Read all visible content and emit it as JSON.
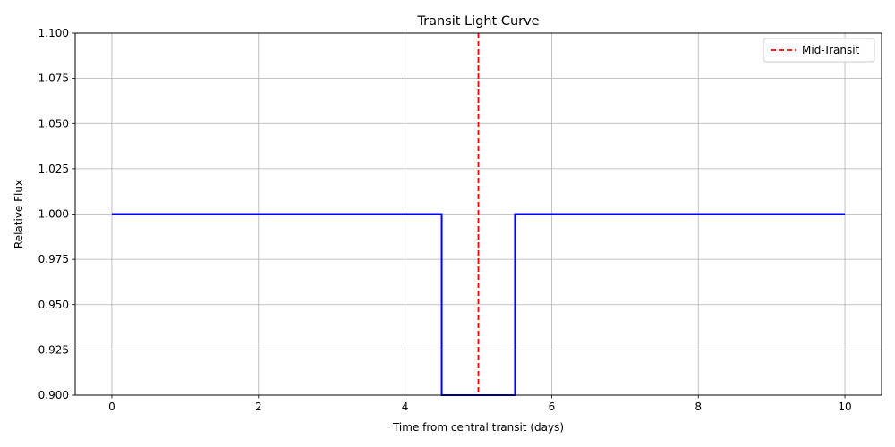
{
  "chart_data": {
    "type": "line",
    "title": "Transit Light Curve",
    "xlabel": "Time from central transit (days)",
    "ylabel": "Relative Flux",
    "xlim": [
      -0.5,
      10.5
    ],
    "ylim": [
      0.9,
      1.1
    ],
    "xticks": [
      0,
      2,
      4,
      6,
      8,
      10
    ],
    "xtick_labels": [
      "0",
      "2",
      "4",
      "6",
      "8",
      "10"
    ],
    "yticks": [
      0.9,
      0.925,
      0.95,
      0.975,
      1.0,
      1.025,
      1.05,
      1.075,
      1.1
    ],
    "ytick_labels": [
      "0.900",
      "0.925",
      "0.950",
      "0.975",
      "1.000",
      "1.025",
      "1.050",
      "1.075",
      "1.100"
    ],
    "grid": true,
    "legend_position": "top-right",
    "series": [
      {
        "color": "#0000ff",
        "style": "solid",
        "x": [
          0,
          4.5,
          4.5,
          5.5,
          5.5,
          10
        ],
        "y": [
          1.0,
          1.0,
          0.9,
          0.9,
          1.0,
          1.0
        ]
      }
    ],
    "reference_lines": [
      {
        "name": "Mid-Transit",
        "orientation": "vertical",
        "x": 5,
        "color": "#ff0000",
        "style": "dashed"
      }
    ]
  }
}
